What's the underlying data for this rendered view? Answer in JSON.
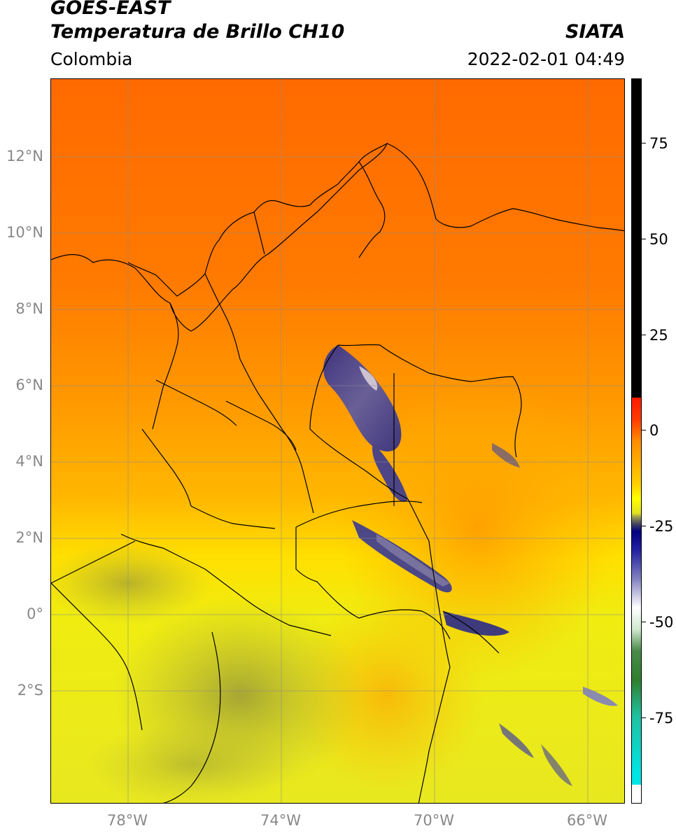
{
  "header": {
    "satellite": "GOES-EAST",
    "product": "Temperatura de Brillo CH10",
    "region": "Colombia",
    "agency": "SIATA",
    "datetime": "2022-02-01 04:49"
  },
  "map": {
    "lat_labels": [
      "12°N",
      "10°N",
      "8°N",
      "6°N",
      "4°N",
      "2°N",
      "0°",
      "2°S"
    ],
    "lon_labels": [
      "78°W",
      "74°W",
      "70°W",
      "66°W"
    ],
    "extent": {
      "lon_min": -80,
      "lon_max": -65,
      "lat_min": -5,
      "lat_max": 14
    },
    "gridlines": true
  },
  "colorbar": {
    "tick_labels": [
      "75",
      "50",
      "25",
      "0",
      "-25",
      "-50",
      "-75"
    ],
    "range": [
      -95,
      90
    ],
    "colors": {
      "above_10": "#000000",
      "0_to_10": "#ff1a00",
      "warm_orange": "#ff8c00",
      "yellow": "#ffff00",
      "olive": "#8a8a3a",
      "dark_blue": "#000080",
      "white": "#ffffff",
      "green": "#2f7f2f",
      "teal": "#20c0a0",
      "cyan": "#00e5e5"
    }
  }
}
